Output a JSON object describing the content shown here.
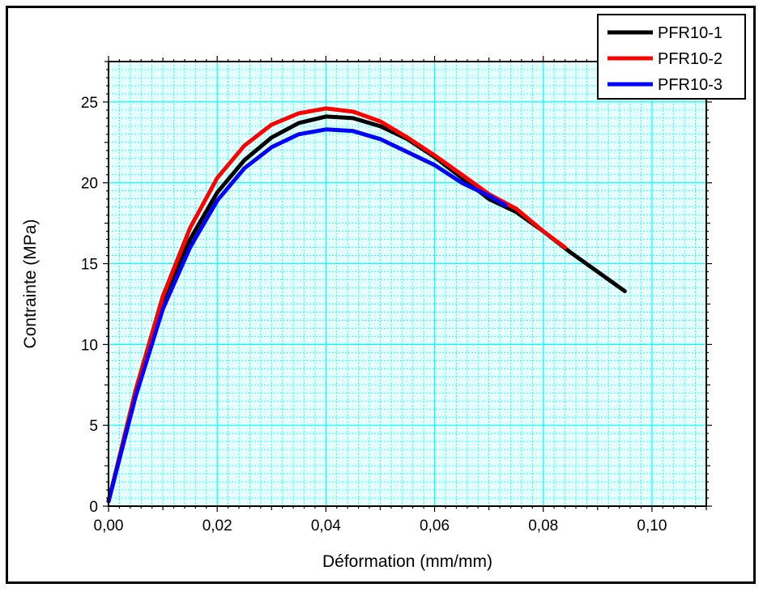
{
  "chart_data": {
    "type": "line",
    "xlabel": "Déformation (mm/mm)",
    "ylabel": "Contrainte (MPa)",
    "xlim": [
      0,
      0.11
    ],
    "ylim": [
      0,
      27.5
    ],
    "x_ticks": [
      0,
      0.02,
      0.04,
      0.06,
      0.08,
      0.1
    ],
    "x_tick_labels": [
      "0,00",
      "0,02",
      "0,04",
      "0,06",
      "0,08",
      "0,10"
    ],
    "y_ticks": [
      0,
      5,
      10,
      15,
      20,
      25
    ],
    "y_tick_labels": [
      "0",
      "5",
      "10",
      "15",
      "20",
      "25"
    ],
    "grid": true,
    "grid_color": "#00ffff",
    "plot_background": "#e6ffff",
    "legend_position": "top-right",
    "series": [
      {
        "name": "PFR10-1",
        "color": "#000000",
        "points": [
          [
            0.0,
            0.3
          ],
          [
            0.005,
            7.0
          ],
          [
            0.01,
            12.6
          ],
          [
            0.015,
            16.5
          ],
          [
            0.02,
            19.4
          ],
          [
            0.025,
            21.4
          ],
          [
            0.03,
            22.8
          ],
          [
            0.035,
            23.7
          ],
          [
            0.04,
            24.1
          ],
          [
            0.045,
            24.0
          ],
          [
            0.05,
            23.5
          ],
          [
            0.055,
            22.7
          ],
          [
            0.06,
            21.6
          ],
          [
            0.065,
            20.3
          ],
          [
            0.07,
            19.0
          ],
          [
            0.075,
            18.2
          ],
          [
            0.08,
            17.0
          ],
          [
            0.085,
            15.7
          ],
          [
            0.09,
            14.5
          ],
          [
            0.095,
            13.3
          ]
        ]
      },
      {
        "name": "PFR10-2",
        "color": "#ff0000",
        "points": [
          [
            0.0,
            0.3
          ],
          [
            0.005,
            7.2
          ],
          [
            0.01,
            13.0
          ],
          [
            0.015,
            17.2
          ],
          [
            0.02,
            20.3
          ],
          [
            0.025,
            22.3
          ],
          [
            0.03,
            23.6
          ],
          [
            0.035,
            24.3
          ],
          [
            0.04,
            24.6
          ],
          [
            0.045,
            24.4
          ],
          [
            0.05,
            23.8
          ],
          [
            0.055,
            22.8
          ],
          [
            0.06,
            21.7
          ],
          [
            0.065,
            20.5
          ],
          [
            0.07,
            19.3
          ],
          [
            0.075,
            18.4
          ],
          [
            0.08,
            17.0
          ],
          [
            0.084,
            16.0
          ]
        ]
      },
      {
        "name": "PFR10-3",
        "color": "#0000ff",
        "points": [
          [
            0.0,
            0.3
          ],
          [
            0.005,
            6.8
          ],
          [
            0.01,
            12.2
          ],
          [
            0.015,
            16.0
          ],
          [
            0.02,
            18.9
          ],
          [
            0.025,
            20.9
          ],
          [
            0.03,
            22.2
          ],
          [
            0.035,
            23.0
          ],
          [
            0.04,
            23.3
          ],
          [
            0.045,
            23.2
          ],
          [
            0.05,
            22.7
          ],
          [
            0.055,
            21.9
          ],
          [
            0.06,
            21.1
          ],
          [
            0.065,
            20.0
          ],
          [
            0.07,
            19.2
          ],
          [
            0.073,
            18.6
          ]
        ]
      }
    ]
  }
}
